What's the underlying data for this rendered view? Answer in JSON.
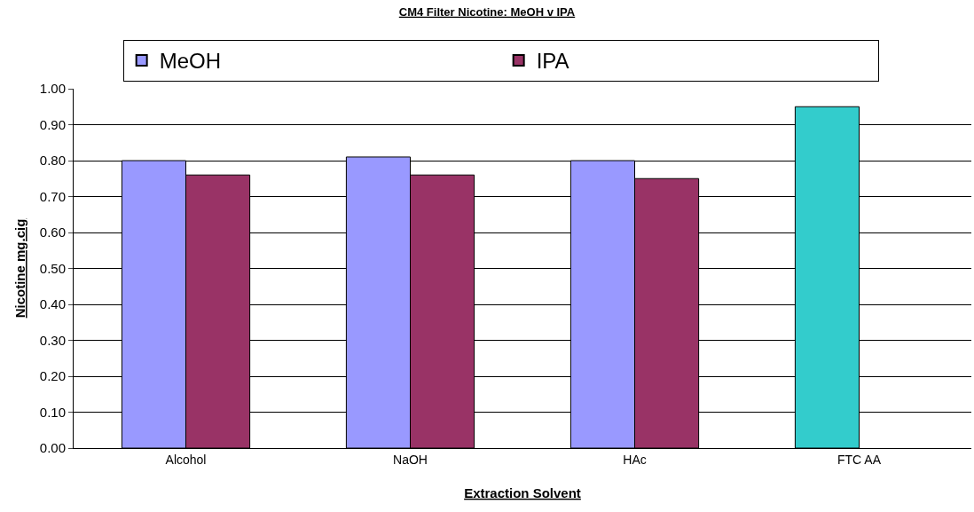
{
  "chart_data": {
    "type": "bar",
    "title": "CM4 Filter Nicotine: MeOH v IPA",
    "xlabel": "Extraction Solvent",
    "ylabel": "Nicotine mg.cig",
    "categories": [
      "Alcohol",
      "NaOH",
      "HAc",
      "FTC AA"
    ],
    "series": [
      {
        "name": "MeOH",
        "color": "#9999ff",
        "colors": [
          "#9999ff",
          "#9999ff",
          "#9999ff",
          "#33cccc"
        ],
        "values": [
          0.8,
          0.81,
          0.8,
          0.95
        ]
      },
      {
        "name": "IPA",
        "color": "#993366",
        "values": [
          0.76,
          0.76,
          0.75,
          null
        ]
      }
    ],
    "ylim": [
      0,
      1.0
    ],
    "yticks": [
      {
        "value": 0,
        "label": "0.00"
      },
      {
        "value": 0.1,
        "label": "0.10"
      },
      {
        "value": 0.2,
        "label": "0.20"
      },
      {
        "value": 0.3,
        "label": "0.30"
      },
      {
        "value": 0.4,
        "label": "0.40"
      },
      {
        "value": 0.5,
        "label": "0.50"
      },
      {
        "value": 0.6,
        "label": "0.60"
      },
      {
        "value": 0.7,
        "label": "0.70"
      },
      {
        "value": 0.8,
        "label": "0.80"
      },
      {
        "value": 0.9,
        "label": "0.90"
      },
      {
        "value": 1.0,
        "label": "1.00"
      }
    ],
    "grid": "y",
    "legend": "top"
  }
}
